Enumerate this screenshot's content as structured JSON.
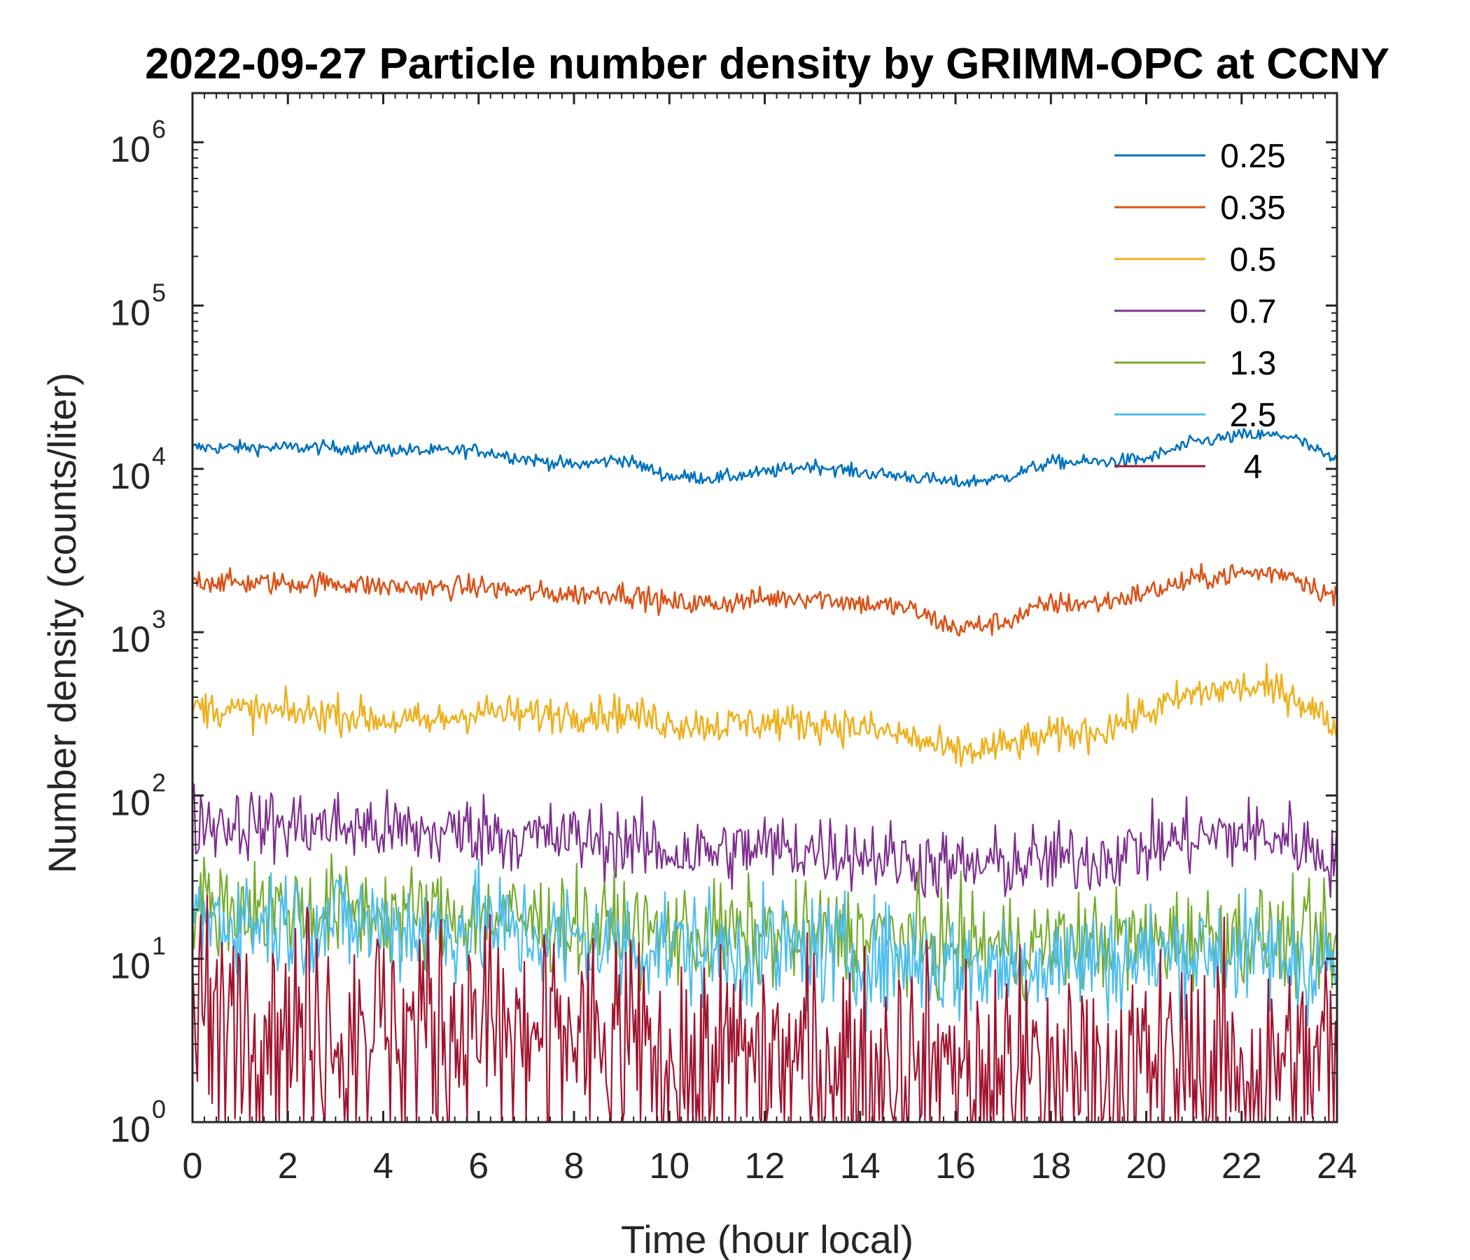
{
  "chart_data": {
    "type": "line",
    "title": "2022-09-27 Particle number density by GRIMM-OPC at CCNY",
    "xlabel": "Time (hour local)",
    "ylabel": "Number density (counts/liter)",
    "xlim": [
      0,
      24
    ],
    "ylim": [
      1,
      2000000
    ],
    "yscale": "log",
    "x_ticks": [
      0,
      2,
      4,
      6,
      8,
      10,
      12,
      14,
      16,
      18,
      20,
      22,
      24
    ],
    "y_ticks": [
      {
        "base": "10",
        "exp": "0",
        "value": 1
      },
      {
        "base": "10",
        "exp": "1",
        "value": 10
      },
      {
        "base": "10",
        "exp": "2",
        "value": 100
      },
      {
        "base": "10",
        "exp": "3",
        "value": 1000
      },
      {
        "base": "10",
        "exp": "4",
        "value": 10000
      },
      {
        "base": "10",
        "exp": "5",
        "value": 100000
      },
      {
        "base": "10",
        "exp": "6",
        "value": 1000000
      }
    ],
    "legend_position": "top-right",
    "x": [
      0,
      1,
      2,
      3,
      4,
      5,
      6,
      7,
      8,
      9,
      10,
      11,
      12,
      13,
      14,
      15,
      16,
      17,
      18,
      19,
      20,
      21,
      22,
      23,
      24
    ],
    "series": [
      {
        "name": "0.25",
        "color": "#0072BD",
        "noise": 0.03,
        "values": [
          13500,
          13500,
          13500,
          13500,
          13200,
          12800,
          13000,
          11500,
          10500,
          11500,
          9000,
          8800,
          9500,
          10500,
          9500,
          9000,
          8200,
          8800,
          11000,
          11000,
          11500,
          14500,
          16000,
          16000,
          11000
        ]
      },
      {
        "name": "0.35",
        "color": "#D95319",
        "noise": 0.05,
        "values": [
          2100,
          2000,
          2000,
          2000,
          1900,
          1850,
          1900,
          1750,
          1700,
          1750,
          1500,
          1500,
          1600,
          1650,
          1500,
          1400,
          1050,
          1150,
          1500,
          1500,
          1750,
          2100,
          2300,
          2300,
          1600
        ]
      },
      {
        "name": "0.5",
        "color": "#EDB120",
        "noise": 0.08,
        "values": [
          350,
          330,
          320,
          320,
          290,
          280,
          330,
          310,
          320,
          320,
          280,
          270,
          280,
          280,
          260,
          230,
          180,
          200,
          230,
          250,
          320,
          420,
          460,
          430,
          260
        ]
      },
      {
        "name": "0.7",
        "color": "#7E2F8E",
        "noise": 0.16,
        "values": [
          70,
          68,
          65,
          65,
          62,
          58,
          62,
          55,
          55,
          52,
          45,
          45,
          48,
          47,
          45,
          40,
          36,
          38,
          40,
          42,
          48,
          55,
          58,
          55,
          40
        ]
      },
      {
        "name": "1.3",
        "color": "#77AC30",
        "noise": 0.22,
        "values": [
          22,
          21,
          20,
          20,
          19,
          18,
          19,
          17,
          16,
          15,
          14,
          14,
          14,
          14,
          14,
          13,
          12,
          12,
          12,
          13,
          13,
          14,
          14,
          13,
          12
        ]
      },
      {
        "name": "2.5",
        "color": "#4DBEEE",
        "noise": 0.25,
        "values": [
          18,
          17,
          17,
          17,
          16,
          15,
          16,
          14,
          13,
          12,
          12,
          11,
          11,
          11,
          10,
          10,
          9,
          9,
          10,
          10,
          10,
          11,
          11,
          10,
          9
        ]
      },
      {
        "name": "4",
        "color": "#A2142F",
        "noise": 0.45,
        "values": [
          5,
          5,
          4.5,
          4.5,
          4.5,
          4,
          4.5,
          4,
          3.5,
          3,
          3,
          3,
          3,
          3,
          3,
          2.5,
          2.5,
          2.5,
          2.5,
          2.5,
          2.5,
          2.5,
          2.5,
          2.5,
          2.5
        ]
      }
    ]
  }
}
